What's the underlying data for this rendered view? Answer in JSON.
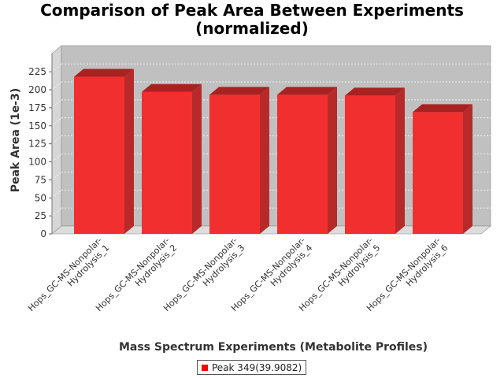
{
  "chart_data": {
    "type": "bar",
    "title": [
      "Comparison of Peak Area Between Experiments",
      "(normalized)"
    ],
    "xlabel": "Mass Spectrum Experiments (Metabolite Profiles)",
    "ylabel": "Peak Area (1e-3)",
    "categories": [
      [
        "Hops_GC-MS-Nonpolar-",
        "Hydrolysis_1"
      ],
      [
        "Hops_GC-MS-Nonpolar-",
        "Hydrolysis_2"
      ],
      [
        "Hops_GC-MS-Nonpolar-",
        "Hydrolysis_3"
      ],
      [
        "Hops_GC-MS-Nonpolar-",
        "Hydrolysis_4"
      ],
      [
        "Hops_GC-MS-Nonpolar-",
        "Hydrolysis_5"
      ],
      [
        "Hops_GC-MS-Nonpolar-",
        "Hydrolysis_6"
      ]
    ],
    "series": [
      {
        "name": "Peak 349(39.9082)",
        "values": [
          218,
          197,
          193,
          193,
          192,
          169
        ]
      }
    ],
    "ylim": [
      0,
      230
    ],
    "yticks": [
      0,
      25,
      50,
      75,
      100,
      125,
      150,
      175,
      200,
      225
    ],
    "grid": true,
    "legend_position": "bottom",
    "colors": {
      "bar_front": "#f22f2f",
      "bar_side": "#b82a2a",
      "bar_top": "#a82222",
      "plot_bg": "#c0c0c0",
      "wall_left": "#d6d6d6",
      "floor": "#dcdcdc",
      "legend_swatch": "#ff0000"
    }
  }
}
